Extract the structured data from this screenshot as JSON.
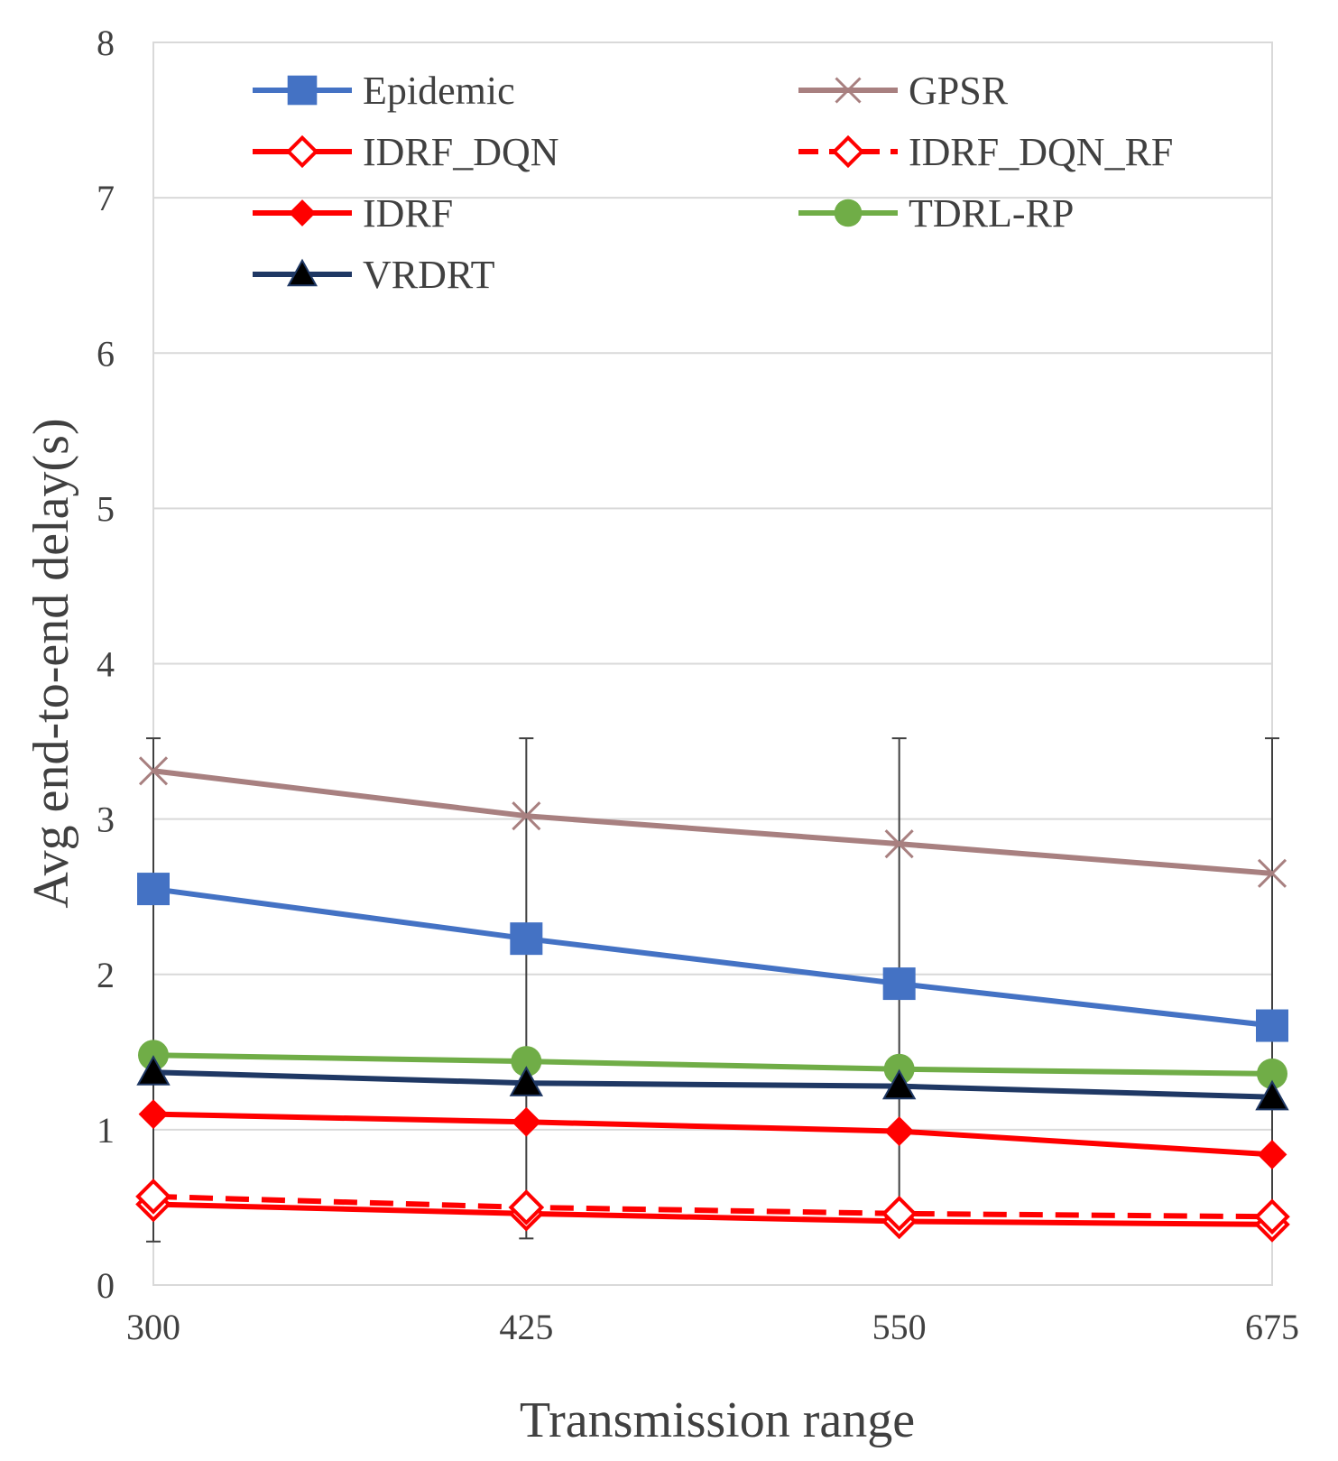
{
  "chart_data": {
    "type": "line",
    "title": "",
    "xlabel": "Transmission range",
    "ylabel": "Avg end-to-end delay(s)",
    "categories": [
      "300",
      "425",
      "550",
      "675"
    ],
    "ylim": [
      0,
      8
    ],
    "yticks": [
      "0",
      "1",
      "2",
      "3",
      "4",
      "5",
      "6",
      "7",
      "8"
    ],
    "grid": true,
    "legend_position": "top",
    "error_bars": {
      "series": "GPSR",
      "low": [
        0.28,
        0.3,
        0.4,
        0.38
      ],
      "high": [
        3.52,
        3.52,
        3.52,
        3.52
      ]
    },
    "series": [
      {
        "name": "Epidemic",
        "values": [
          2.55,
          2.23,
          1.94,
          1.67
        ],
        "color": "#4472C4",
        "marker": "square",
        "dashed": false
      },
      {
        "name": "GPSR",
        "values": [
          3.31,
          3.02,
          2.84,
          2.65
        ],
        "color": "#A88080",
        "marker": "x",
        "dashed": false
      },
      {
        "name": "IDRF_DQN",
        "values": [
          0.52,
          0.46,
          0.41,
          0.39
        ],
        "color": "#FF0000",
        "marker": "diamond-open",
        "dashed": false
      },
      {
        "name": "IDRF_DQN_RF",
        "values": [
          0.57,
          0.5,
          0.46,
          0.44
        ],
        "color": "#FF0000",
        "marker": "diamond-open",
        "dashed": true
      },
      {
        "name": "IDRF",
        "values": [
          1.1,
          1.05,
          0.99,
          0.84
        ],
        "color": "#FF0000",
        "marker": "diamond",
        "dashed": false
      },
      {
        "name": "TDRL-RP",
        "values": [
          1.48,
          1.44,
          1.39,
          1.36
        ],
        "color": "#70AD47",
        "marker": "circle",
        "dashed": false
      },
      {
        "name": "VRDRT",
        "values": [
          1.37,
          1.3,
          1.28,
          1.21
        ],
        "color": "#1F3864",
        "marker": "triangle",
        "dashed": false
      }
    ]
  }
}
